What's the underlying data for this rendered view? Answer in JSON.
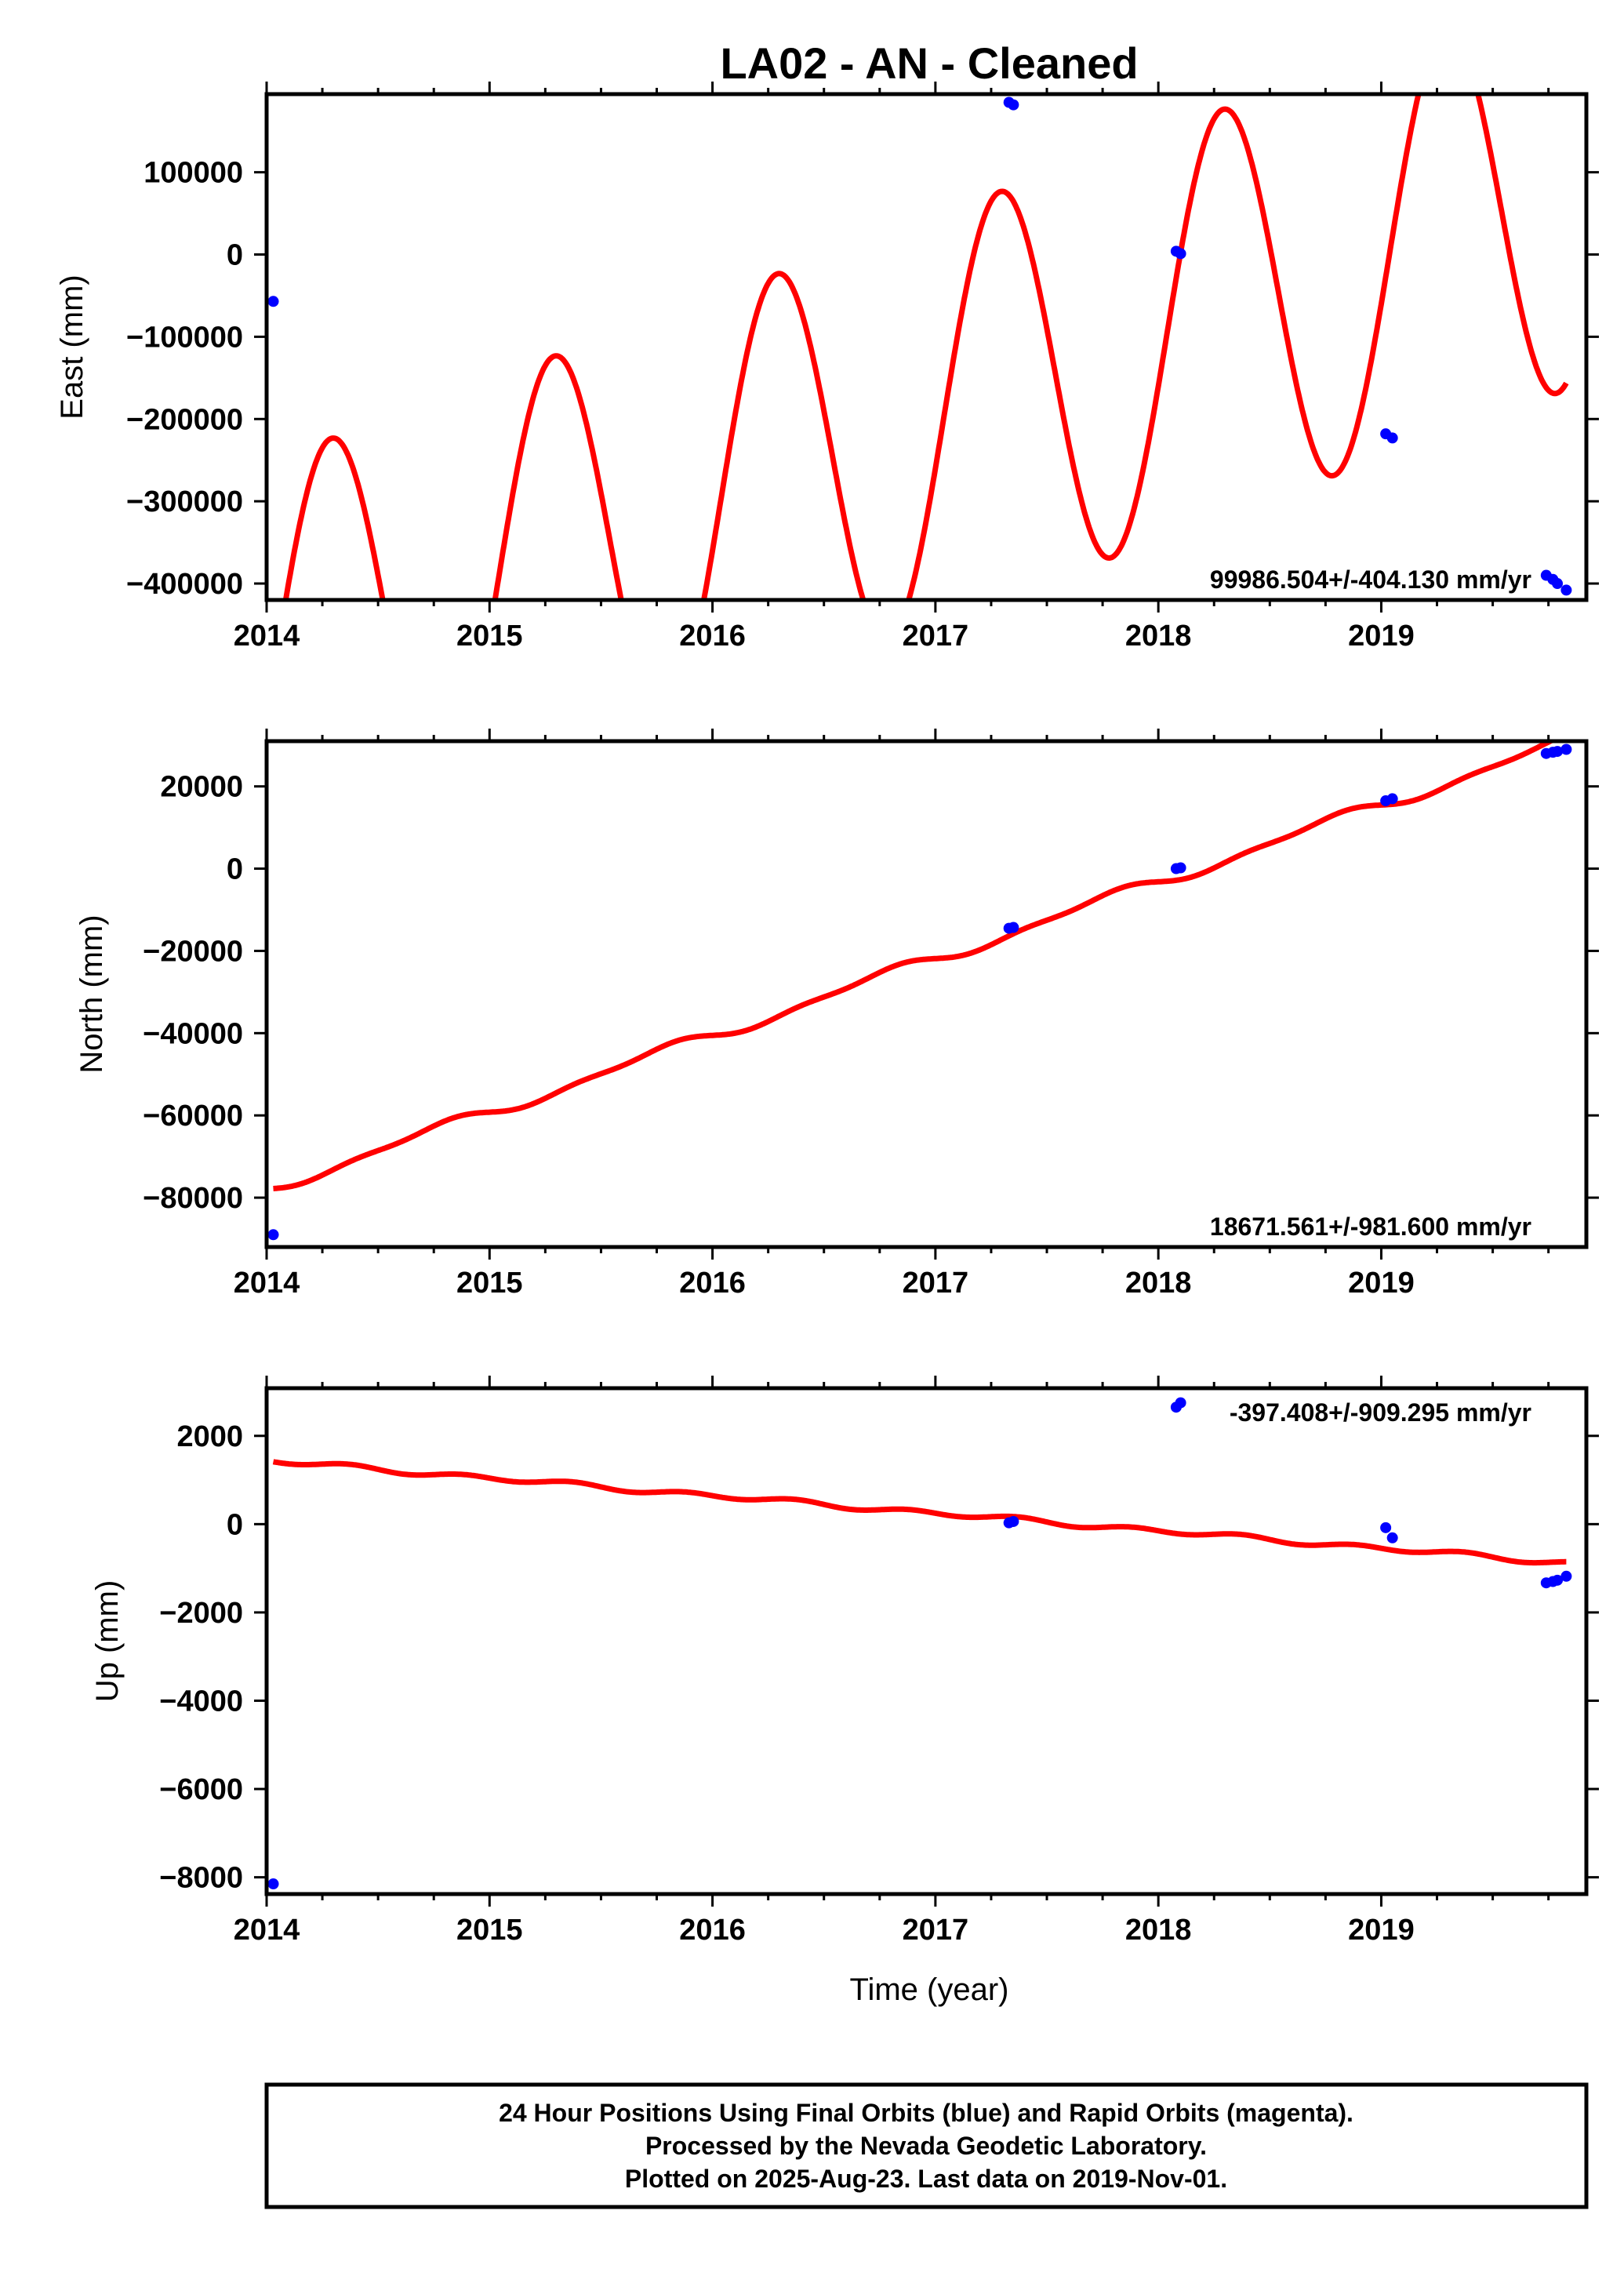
{
  "chart_data": {
    "type": "scatter",
    "title": "LA02  - AN - Cleaned",
    "xlabel": "Time (year)",
    "xlim": [
      2014.0,
      2019.92
    ],
    "x_ticks": [
      2014,
      2015,
      2016,
      2017,
      2018,
      2019
    ],
    "panels": [
      {
        "id": "east",
        "ylabel": "East (mm)",
        "ylim": [
          -420000,
          195000
        ],
        "y_ticks": [
          -400000,
          -300000,
          -200000,
          -100000,
          0,
          100000
        ],
        "rate_label": "99986.504+/-404.130 mm/yr",
        "rate_position": "bottom-right",
        "points": [
          {
            "x": 2014.03,
            "y": -57000
          },
          {
            "x": 2017.33,
            "y": 185000
          },
          {
            "x": 2017.35,
            "y": 182000
          },
          {
            "x": 2018.08,
            "y": 4000
          },
          {
            "x": 2018.1,
            "y": 1000
          },
          {
            "x": 2019.02,
            "y": -218000
          },
          {
            "x": 2019.05,
            "y": -223000
          },
          {
            "x": 2019.74,
            "y": -390000
          },
          {
            "x": 2019.77,
            "y": -395000
          },
          {
            "x": 2019.79,
            "y": -400000
          },
          {
            "x": 2019.83,
            "y": -408000
          }
        ],
        "fit": {
          "type": "seasonal",
          "t0": 2018.0,
          "offset": -100000,
          "rate": 99986.504,
          "amp_cos": -60000,
          "amp_sin": 240000,
          "x_start": 2014.03,
          "x_end": 2019.83
        }
      },
      {
        "id": "north",
        "ylabel": "North (mm)",
        "ylim": [
          -92000,
          31000
        ],
        "y_ticks": [
          -80000,
          -60000,
          -40000,
          -20000,
          0,
          20000
        ],
        "rate_label": "18671.561+/-981.600 mm/yr",
        "rate_position": "bottom-right",
        "points": [
          {
            "x": 2014.03,
            "y": -89000
          },
          {
            "x": 2017.33,
            "y": -14500
          },
          {
            "x": 2017.35,
            "y": -14300
          },
          {
            "x": 2018.08,
            "y": 0
          },
          {
            "x": 2018.1,
            "y": 200
          },
          {
            "x": 2019.02,
            "y": 16500
          },
          {
            "x": 2019.05,
            "y": 17000
          },
          {
            "x": 2019.74,
            "y": 28000
          },
          {
            "x": 2019.77,
            "y": 28300
          },
          {
            "x": 2019.79,
            "y": 28500
          },
          {
            "x": 2019.83,
            "y": 29000
          }
        ],
        "fit": {
          "type": "seasonal",
          "t0": 2018.0,
          "offset": -3200,
          "rate": 18671.561,
          "amp_cos": 0,
          "amp_sin": -1300,
          "amp_cos2": 0,
          "amp_sin2": -600,
          "x_start": 2014.03,
          "x_end": 2019.83
        }
      },
      {
        "id": "up",
        "ylabel": "Up (mm)",
        "ylim": [
          -8380,
          3080
        ],
        "y_ticks": [
          -8000,
          -6000,
          -4000,
          -2000,
          0,
          2000
        ],
        "rate_label": "-397.408+/-909.295 mm/yr",
        "rate_position": "top-right",
        "points": [
          {
            "x": 2014.03,
            "y": -8150
          },
          {
            "x": 2017.33,
            "y": 30
          },
          {
            "x": 2017.35,
            "y": 60
          },
          {
            "x": 2018.08,
            "y": 2650
          },
          {
            "x": 2018.1,
            "y": 2750
          },
          {
            "x": 2019.02,
            "y": -80
          },
          {
            "x": 2019.05,
            "y": -310
          },
          {
            "x": 2019.74,
            "y": -1330
          },
          {
            "x": 2019.77,
            "y": -1300
          },
          {
            "x": 2019.79,
            "y": -1270
          },
          {
            "x": 2019.83,
            "y": -1180
          }
        ],
        "fit": {
          "type": "seasonal",
          "t0": 2018.0,
          "offset": -150,
          "rate": -397.408,
          "amp_cos": 0,
          "amp_sin": 20,
          "amp_cos2": 0,
          "amp_sin2": -50,
          "x_start": 2014.03,
          "x_end": 2019.83
        }
      }
    ],
    "colors": {
      "points": "#0000ff",
      "fit_line": "#ff0000",
      "frame": "#000000"
    },
    "legend": "none",
    "grid": false
  },
  "footer": {
    "line1": "24 Hour Positions Using Final Orbits (blue) and Rapid Orbits (magenta).",
    "line2": "Processed by the Nevada Geodetic Laboratory.",
    "line3": "Plotted on 2025-Aug-23. Last data on 2019-Nov-01."
  }
}
